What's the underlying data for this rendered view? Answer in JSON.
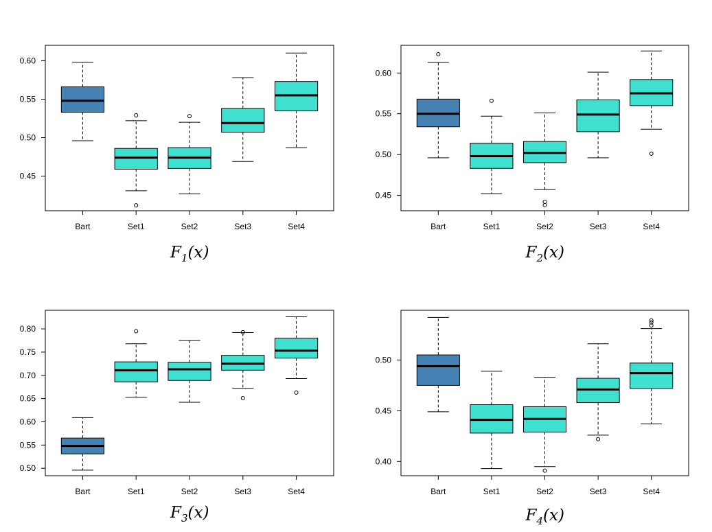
{
  "colors": {
    "bart_fill": "#4682b4",
    "set_fill": "#40e0d0",
    "line": "#000000",
    "frame": "#000000"
  },
  "chart_data": [
    {
      "type": "boxplot",
      "title": {
        "main": "F",
        "sub": "1",
        "arg": "(x)"
      },
      "categories": [
        "Bart",
        "Set1",
        "Set2",
        "Set3",
        "Set4"
      ],
      "ylim": [
        0.405,
        0.62
      ],
      "yticks": [
        0.45,
        0.5,
        0.55,
        0.6
      ],
      "ytick_labels": [
        "0.45",
        "0.50",
        "0.55",
        "0.60"
      ],
      "boxes": [
        {
          "min": 0.496,
          "q1": 0.533,
          "median": 0.548,
          "q3": 0.566,
          "max": 0.598,
          "outliers": []
        },
        {
          "min": 0.431,
          "q1": 0.459,
          "median": 0.474,
          "q3": 0.486,
          "max": 0.522,
          "outliers": [
            0.529,
            0.412
          ]
        },
        {
          "min": 0.427,
          "q1": 0.46,
          "median": 0.474,
          "q3": 0.487,
          "max": 0.52,
          "outliers": [
            0.528
          ]
        },
        {
          "min": 0.469,
          "q1": 0.507,
          "median": 0.519,
          "q3": 0.538,
          "max": 0.578,
          "outliers": []
        },
        {
          "min": 0.487,
          "q1": 0.535,
          "median": 0.555,
          "q3": 0.573,
          "max": 0.61,
          "outliers": []
        }
      ]
    },
    {
      "type": "boxplot",
      "title": {
        "main": "F",
        "sub": "2",
        "arg": "(x)"
      },
      "categories": [
        "Bart",
        "Set1",
        "Set2",
        "Set3",
        "Set4"
      ],
      "ylim": [
        0.431,
        0.634
      ],
      "yticks": [
        0.45,
        0.5,
        0.55,
        0.6
      ],
      "ytick_labels": [
        "0.45",
        "0.50",
        "0.55",
        "0.60"
      ],
      "boxes": [
        {
          "min": 0.496,
          "q1": 0.534,
          "median": 0.55,
          "q3": 0.568,
          "max": 0.613,
          "outliers": [
            0.623
          ]
        },
        {
          "min": 0.452,
          "q1": 0.483,
          "median": 0.498,
          "q3": 0.514,
          "max": 0.547,
          "outliers": [
            0.566
          ]
        },
        {
          "min": 0.457,
          "q1": 0.49,
          "median": 0.502,
          "q3": 0.516,
          "max": 0.551,
          "outliers": [
            0.442,
            0.438
          ]
        },
        {
          "min": 0.496,
          "q1": 0.528,
          "median": 0.549,
          "q3": 0.567,
          "max": 0.601,
          "outliers": []
        },
        {
          "min": 0.531,
          "q1": 0.56,
          "median": 0.575,
          "q3": 0.592,
          "max": 0.627,
          "outliers": [
            0.501
          ]
        }
      ]
    },
    {
      "type": "boxplot",
      "title": {
        "main": "F",
        "sub": "3",
        "arg": "(x)"
      },
      "categories": [
        "Bart",
        "Set1",
        "Set2",
        "Set3",
        "Set4"
      ],
      "ylim": [
        0.484,
        0.84
      ],
      "yticks": [
        0.5,
        0.55,
        0.6,
        0.65,
        0.7,
        0.75,
        0.8
      ],
      "ytick_labels": [
        "0.50",
        "0.55",
        "0.60",
        "0.65",
        "0.70",
        "0.75",
        "0.80"
      ],
      "boxes": [
        {
          "min": 0.496,
          "q1": 0.531,
          "median": 0.548,
          "q3": 0.565,
          "max": 0.609,
          "outliers": []
        },
        {
          "min": 0.653,
          "q1": 0.686,
          "median": 0.711,
          "q3": 0.729,
          "max": 0.768,
          "outliers": [
            0.795
          ]
        },
        {
          "min": 0.642,
          "q1": 0.689,
          "median": 0.713,
          "q3": 0.728,
          "max": 0.775,
          "outliers": []
        },
        {
          "min": 0.672,
          "q1": 0.711,
          "median": 0.725,
          "q3": 0.743,
          "max": 0.792,
          "outliers": [
            0.793,
            0.651
          ]
        },
        {
          "min": 0.693,
          "q1": 0.737,
          "median": 0.753,
          "q3": 0.78,
          "max": 0.826,
          "outliers": [
            0.663
          ]
        }
      ]
    },
    {
      "type": "boxplot",
      "title": {
        "main": "F",
        "sub": "4",
        "arg": "(x)"
      },
      "categories": [
        "Bart",
        "Set1",
        "Set2",
        "Set3",
        "Set4"
      ],
      "ylim": [
        0.386,
        0.549
      ],
      "yticks": [
        0.4,
        0.45,
        0.5
      ],
      "ytick_labels": [
        "0.40",
        "0.45",
        "0.50"
      ],
      "boxes": [
        {
          "min": 0.449,
          "q1": 0.475,
          "median": 0.494,
          "q3": 0.505,
          "max": 0.542,
          "outliers": []
        },
        {
          "min": 0.393,
          "q1": 0.428,
          "median": 0.441,
          "q3": 0.456,
          "max": 0.489,
          "outliers": []
        },
        {
          "min": 0.395,
          "q1": 0.429,
          "median": 0.442,
          "q3": 0.454,
          "max": 0.483,
          "outliers": [
            0.391
          ]
        },
        {
          "min": 0.426,
          "q1": 0.458,
          "median": 0.471,
          "q3": 0.482,
          "max": 0.516,
          "outliers": [
            0.422
          ]
        },
        {
          "min": 0.437,
          "q1": 0.472,
          "median": 0.487,
          "q3": 0.497,
          "max": 0.531,
          "outliers": [
            0.539,
            0.537,
            0.534
          ]
        }
      ]
    }
  ]
}
